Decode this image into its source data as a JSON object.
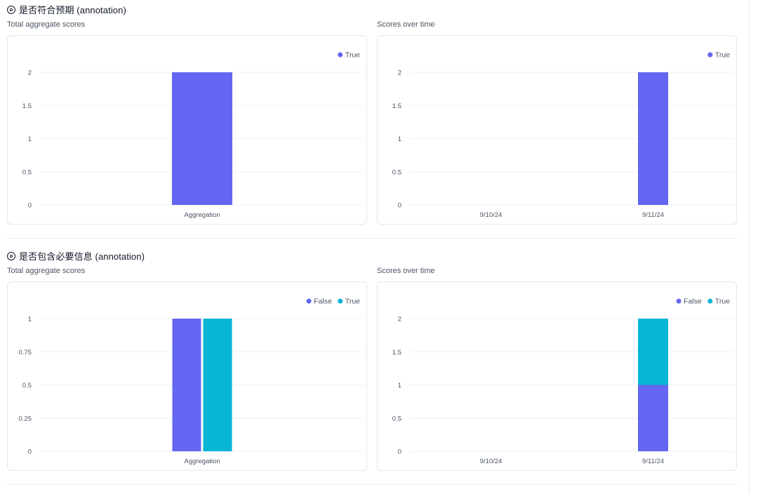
{
  "colors": {
    "blue": "#6366f1",
    "teal": "#06b6d4",
    "grid": "#eef0f3",
    "tick": "#4b5563"
  },
  "sections": [
    {
      "title": "是否符合预期 (annotation)",
      "icon": "target-icon",
      "total_label": "Total aggregate scores",
      "time_label": "Scores over time",
      "charts": [
        {
          "type": "bar",
          "categories": [
            "Aggregation"
          ],
          "series": [
            {
              "name": "True",
              "color": "#6366f1",
              "values": [
                2
              ]
            }
          ],
          "yticks": [
            "0",
            "0.5",
            "1",
            "1.5",
            "2"
          ],
          "ylim": [
            0,
            2
          ],
          "stacked": false,
          "legend": "top-right"
        },
        {
          "type": "bar",
          "categories": [
            "9/10/24",
            "9/11/24"
          ],
          "series": [
            {
              "name": "True",
              "color": "#6366f1",
              "values": [
                0,
                2
              ]
            }
          ],
          "yticks": [
            "0",
            "0.5",
            "1",
            "1.5",
            "2"
          ],
          "ylim": [
            0,
            2
          ],
          "stacked": true,
          "legend": "top-right"
        }
      ]
    },
    {
      "title": "是否包含必要信息 (annotation)",
      "icon": "target-icon",
      "total_label": "Total aggregate scores",
      "time_label": "Scores over time",
      "charts": [
        {
          "type": "bar",
          "categories": [
            "Aggregation"
          ],
          "series": [
            {
              "name": "False",
              "color": "#6366f1",
              "values": [
                1
              ]
            },
            {
              "name": "True",
              "color": "#06b6d4",
              "values": [
                1
              ]
            }
          ],
          "yticks": [
            "0",
            "0.25",
            "0.5",
            "0.75",
            "1"
          ],
          "ylim": [
            0,
            1
          ],
          "stacked": false,
          "legend": "top-right"
        },
        {
          "type": "bar",
          "categories": [
            "9/10/24",
            "9/11/24"
          ],
          "series": [
            {
              "name": "False",
              "color": "#6366f1",
              "values": [
                0,
                1
              ]
            },
            {
              "name": "True",
              "color": "#06b6d4",
              "values": [
                0,
                1
              ]
            }
          ],
          "yticks": [
            "0",
            "0.5",
            "1",
            "1.5",
            "2"
          ],
          "ylim": [
            0,
            2
          ],
          "stacked": true,
          "legend": "top-right"
        }
      ]
    }
  ]
}
